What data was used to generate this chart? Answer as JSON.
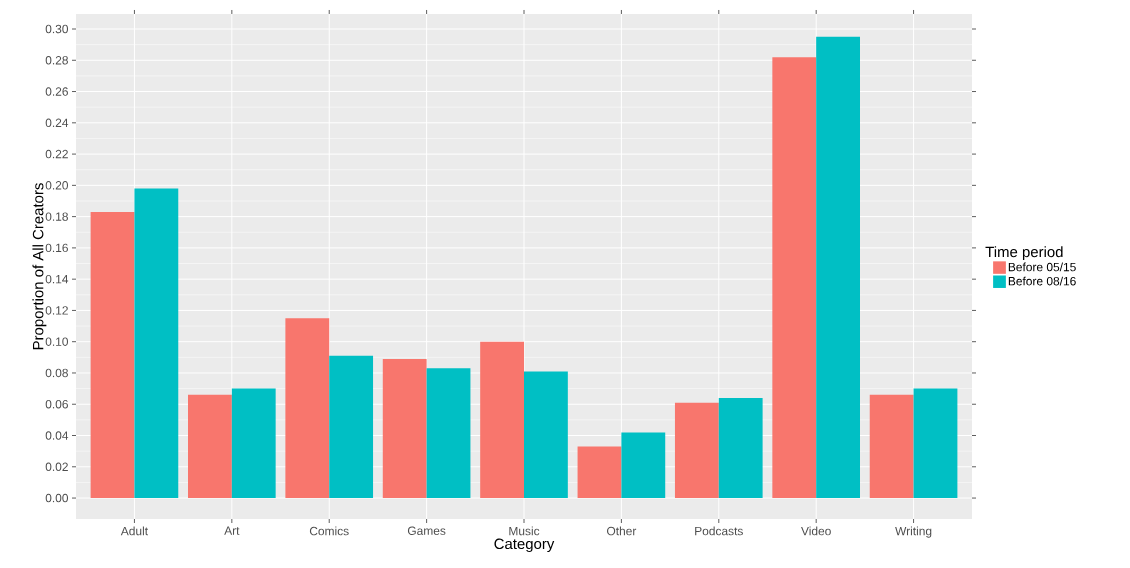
{
  "chart_data": {
    "type": "bar",
    "xlabel": "Category",
    "ylabel": "Proportion of All Creators",
    "legend_title": "Time period",
    "categories": [
      "Adult",
      "Art",
      "Comics",
      "Games",
      "Music",
      "Other",
      "Podcasts",
      "Video",
      "Writing"
    ],
    "series": [
      {
        "name": "Before 05/15",
        "color": "#f8766d",
        "values": [
          0.183,
          0.066,
          0.115,
          0.089,
          0.1,
          0.033,
          0.061,
          0.282,
          0.066
        ]
      },
      {
        "name": "Before 08/16",
        "color": "#00bfc4",
        "values": [
          0.198,
          0.07,
          0.091,
          0.083,
          0.081,
          0.042,
          0.064,
          0.295,
          0.07
        ]
      }
    ],
    "ylim": [
      -0.0134,
      0.3096
    ],
    "yticks": [
      {
        "value": 0,
        "label": "0.00"
      },
      {
        "value": 0.02,
        "label": "0.02"
      },
      {
        "value": 0.04,
        "label": "0.04"
      },
      {
        "value": 0.06,
        "label": "0.06"
      },
      {
        "value": 0.08,
        "label": "0.08"
      },
      {
        "value": 0.1,
        "label": "0.10"
      },
      {
        "value": 0.12,
        "label": "0.12"
      },
      {
        "value": 0.14,
        "label": "0.14"
      },
      {
        "value": 0.16,
        "label": "0.16"
      },
      {
        "value": 0.18,
        "label": "0.18"
      },
      {
        "value": 0.2,
        "label": "0.20"
      },
      {
        "value": 0.22,
        "label": "0.22"
      },
      {
        "value": 0.24,
        "label": "0.24"
      },
      {
        "value": 0.26,
        "label": "0.26"
      },
      {
        "value": 0.28,
        "label": "0.28"
      },
      {
        "value": 0.3,
        "label": "0.30"
      }
    ],
    "grid": true,
    "legend": "right"
  }
}
